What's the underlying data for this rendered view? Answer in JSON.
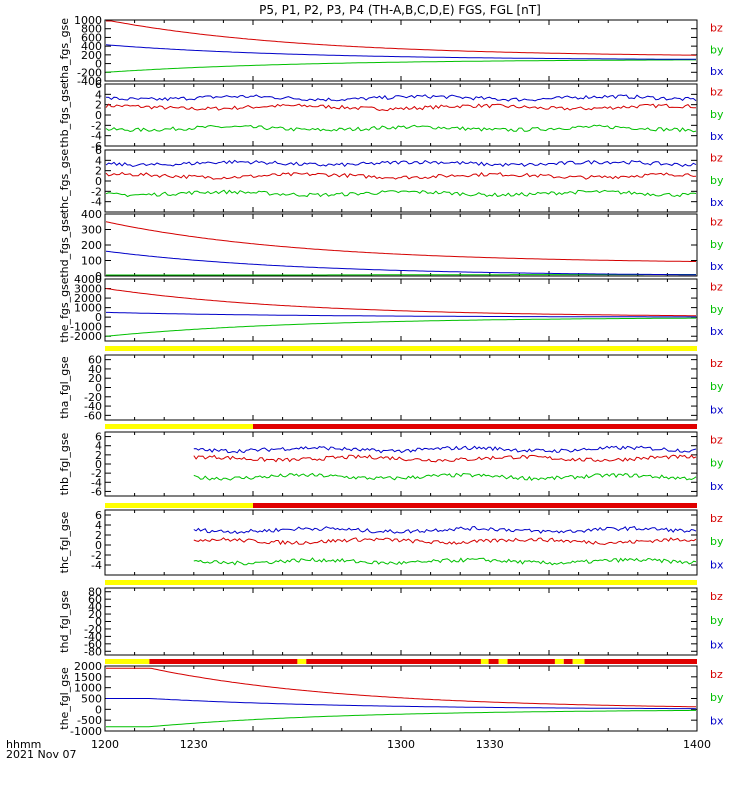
{
  "title": "P5, P1, P2, P3, P4 (TH-A,B,C,D,E) FGS, FGL [nT]",
  "x_axis": {
    "ticks": [
      "1200",
      "1230",
      "1300",
      "1330",
      "1400"
    ],
    "label_line1": "hhmm",
    "label_line2": "2021 Nov 07"
  },
  "legend": [
    {
      "name": "bz",
      "color": "#d40000"
    },
    {
      "name": "by",
      "color": "#00c000"
    },
    {
      "name": "bx",
      "color": "#0000c8"
    }
  ],
  "status_colors": {
    "yellow": "#ffff00",
    "red": "#e00000"
  },
  "chart_data": [
    {
      "type": "line",
      "ylabel": "tha_fgs_gse",
      "ylim": [
        -400,
        1000
      ],
      "yticks": [
        "1000",
        "800",
        "600",
        "400",
        "200",
        "0",
        "-200",
        "-400"
      ],
      "x": [
        1200,
        1230,
        1300,
        1330,
        1400
      ],
      "series": [
        {
          "name": "bz",
          "shape": "decay",
          "start": 1000,
          "end": 150
        },
        {
          "name": "by",
          "shape": "rise",
          "start": -200,
          "end": 100
        },
        {
          "name": "bx",
          "shape": "decay",
          "start": 430,
          "end": 80
        }
      ]
    },
    {
      "type": "line",
      "ylabel": "thb_fgs_gse",
      "ylim": [
        -6,
        6
      ],
      "yticks": [
        "6",
        "4",
        "2",
        "0",
        "-2",
        "-4",
        "-6"
      ],
      "series": [
        {
          "name": "bz",
          "shape": "noisy",
          "level": 1.5
        },
        {
          "name": "by",
          "shape": "noisy",
          "level": -2.6
        },
        {
          "name": "bx",
          "shape": "noisy",
          "level": 3.3
        }
      ]
    },
    {
      "type": "line",
      "ylabel": "thc_fgs_gse",
      "ylim": [
        -6,
        6
      ],
      "yticks": [
        "6",
        "4",
        "2",
        "0",
        "-2",
        "-4"
      ],
      "series": [
        {
          "name": "bz",
          "shape": "noisy",
          "level": 1.0
        },
        {
          "name": "by",
          "shape": "noisy",
          "level": -2.4
        },
        {
          "name": "bx",
          "shape": "noisy",
          "level": 3.4
        }
      ]
    },
    {
      "type": "line",
      "ylabel": "thd_fgs_gse",
      "ylim": [
        0,
        400
      ],
      "yticks": [
        "400",
        "300",
        "200",
        "100",
        "0"
      ],
      "series": [
        {
          "name": "bz",
          "shape": "decay",
          "start": 350,
          "end": 80
        },
        {
          "name": "by",
          "shape": "rise",
          "start": 0,
          "end": 10
        },
        {
          "name": "bx",
          "shape": "decay",
          "start": 160,
          "end": 0
        }
      ]
    },
    {
      "type": "line",
      "ylabel": "the_fgs_gse",
      "ylim": [
        -2500,
        4000
      ],
      "yticks": [
        "4000",
        "3000",
        "2000",
        "1000",
        "0",
        "-1000",
        "-2000"
      ],
      "series": [
        {
          "name": "bz",
          "shape": "decay",
          "start": 3000,
          "end": 0
        },
        {
          "name": "by",
          "shape": "rise",
          "start": -2000,
          "end": 0
        },
        {
          "name": "bx",
          "shape": "decay",
          "start": 500,
          "end": 0
        }
      ]
    },
    {
      "type": "line",
      "ylabel": "tha_fgl_gse",
      "ylim": [
        -70,
        70
      ],
      "yticks": [
        "60",
        "40",
        "20",
        "0",
        "-20",
        "-40",
        "-60"
      ],
      "series": []
    },
    {
      "type": "line",
      "ylabel": "thb_fgl_gse",
      "ylim": [
        -7,
        7
      ],
      "yticks": [
        "6",
        "4",
        "2",
        "0",
        "-2",
        "-4",
        "-6"
      ],
      "data_start": 1230,
      "series": [
        {
          "name": "bz",
          "shape": "noisy",
          "level": 1.2
        },
        {
          "name": "by",
          "shape": "noisy",
          "level": -2.8
        },
        {
          "name": "bx",
          "shape": "noisy",
          "level": 3.2
        }
      ]
    },
    {
      "type": "line",
      "ylabel": "thc_fgl_gse",
      "ylim": [
        -6,
        7
      ],
      "yticks": [
        "6",
        "4",
        "2",
        "0",
        "-2",
        "-4"
      ],
      "data_start": 1230,
      "series": [
        {
          "name": "bz",
          "shape": "noisy",
          "level": 0.8
        },
        {
          "name": "by",
          "shape": "noisy",
          "level": -3.3
        },
        {
          "name": "bx",
          "shape": "noisy",
          "level": 3.0
        }
      ]
    },
    {
      "type": "line",
      "ylabel": "thd_fgl_gse",
      "ylim": [
        -90,
        90
      ],
      "yticks": [
        "80",
        "60",
        "40",
        "20",
        "0",
        "-20",
        "-40",
        "-60",
        "-80"
      ],
      "series": []
    },
    {
      "type": "line",
      "ylabel": "the_fgl_gse",
      "ylim": [
        -1000,
        2000
      ],
      "yticks": [
        "2000",
        "1500",
        "1000",
        "500",
        "0",
        "-500",
        "-1000"
      ],
      "series": [
        {
          "name": "bz",
          "shape": "decay_late",
          "start": 1900,
          "end": 0
        },
        {
          "name": "by",
          "shape": "rise_late",
          "start": -800,
          "end": 0
        },
        {
          "name": "bx",
          "shape": "decay_late",
          "start": 500,
          "end": 0
        }
      ]
    }
  ]
}
